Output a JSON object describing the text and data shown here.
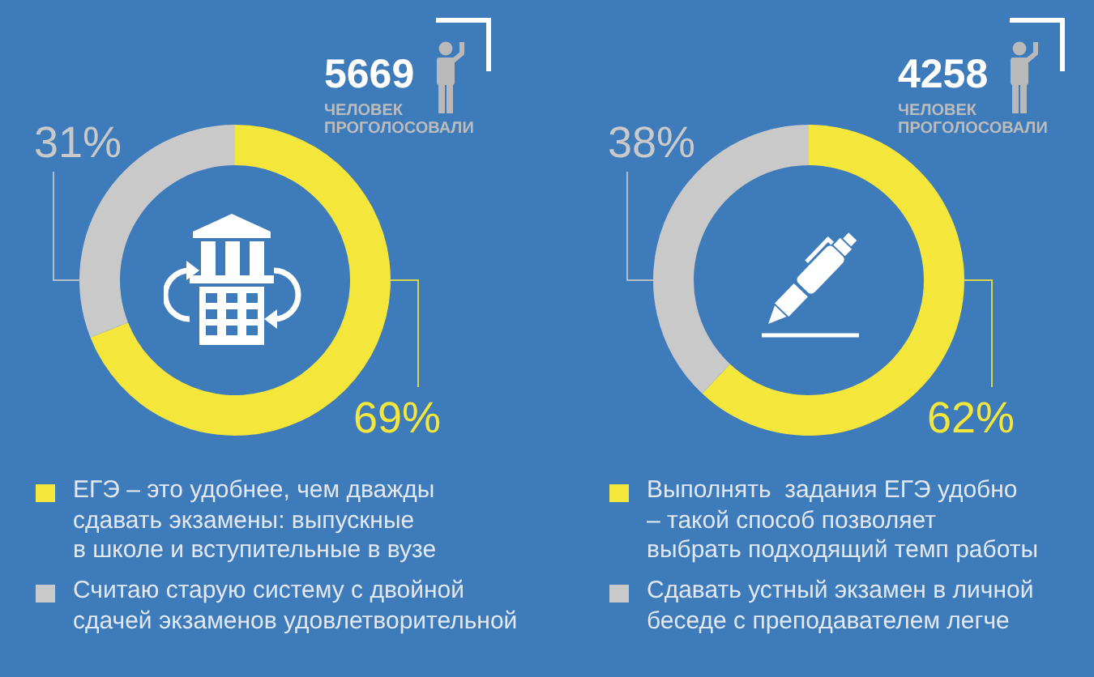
{
  "chart_data": [
    {
      "type": "donut",
      "categories": [
        "ЕГЭ – это удобнее, чем дважды\nсдавать экзамены: выпускные\nв школе и вступительные в вузе",
        "Считаю старую систему с двойной\nсдачей экзаменов удовлетворительной"
      ],
      "values": [
        69,
        31
      ],
      "colors": [
        "#f4e63b",
        "#c9c9c9"
      ],
      "value_labels": [
        "69%",
        "31%"
      ],
      "legend": "bottom",
      "annotations": [
        "5669",
        "ЧЕЛОВЕК ПРОГОЛОСОВАЛИ"
      ]
    },
    {
      "type": "donut",
      "categories": [
        "Выполнять  задания ЕГЭ удобно\n– такой способ позволяет\nвыбрать подходящий темп работы",
        "Сдавать устный экзамен в личной\nбеседе с преподавателем легче"
      ],
      "values": [
        62,
        38
      ],
      "colors": [
        "#f4e63b",
        "#c9c9c9"
      ],
      "value_labels": [
        "62%",
        "38%"
      ],
      "legend": "bottom",
      "annotations": [
        "4258",
        "ЧЕЛОВЕК ПРОГОЛОСОВАЛИ"
      ]
    }
  ]
}
